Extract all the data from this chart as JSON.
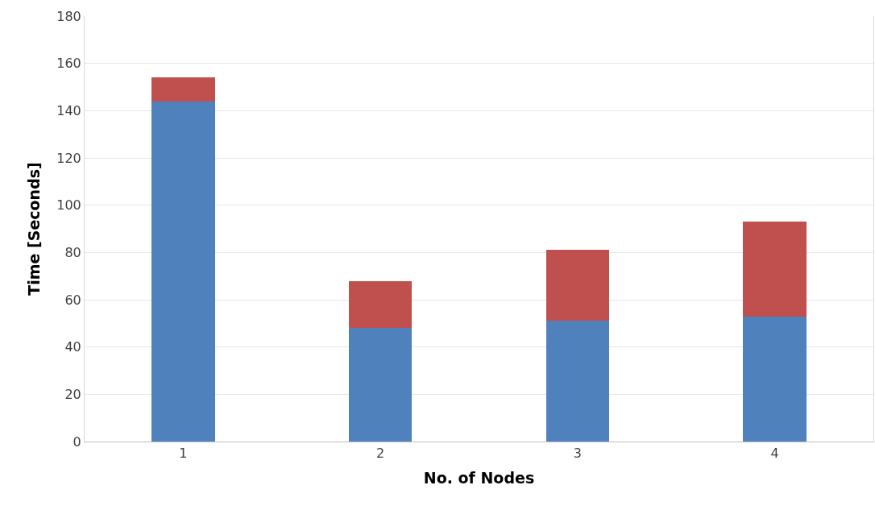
{
  "chart_data": {
    "type": "bar",
    "stacked": true,
    "xlabel": "No. of Nodes",
    "ylabel": "Time [Seconds]",
    "categories": [
      "1",
      "2",
      "3",
      "4"
    ],
    "series": [
      {
        "color": "#4f81bd",
        "values": [
          144,
          48,
          51,
          53
        ]
      },
      {
        "color": "#c0504d",
        "values": [
          10,
          20,
          30,
          40
        ]
      }
    ],
    "ylim": [
      0,
      180
    ],
    "yticks": [
      0,
      20,
      40,
      60,
      80,
      100,
      120,
      140,
      160,
      180
    ],
    "grid": "y"
  }
}
